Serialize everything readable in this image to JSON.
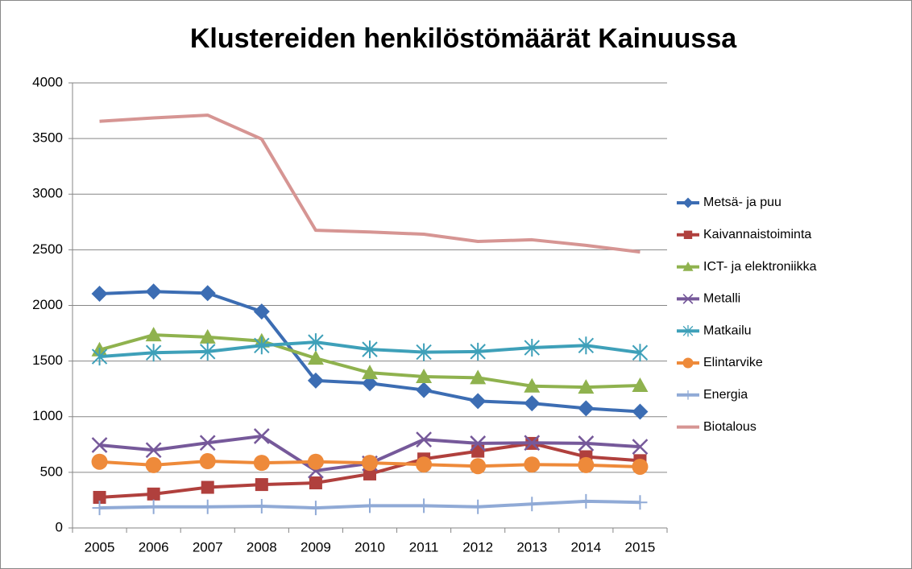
{
  "chart_data": {
    "type": "line",
    "title": "Klustereiden henkilöstömäärät Kainuussa",
    "categories": [
      "2005",
      "2006",
      "2007",
      "2008",
      "2009",
      "2010",
      "2011",
      "2012",
      "2013",
      "2014",
      "2015"
    ],
    "ylim": [
      0,
      4000
    ],
    "yticks": [
      0,
      500,
      1000,
      1500,
      2000,
      2500,
      3000,
      3500,
      4000
    ],
    "grid": true,
    "legend": "right",
    "series": [
      {
        "name": "Metsä- ja puu",
        "color": "#3c6db3",
        "marker": "diamond",
        "values": [
          2105,
          2125,
          2110,
          1945,
          1325,
          1300,
          1240,
          1140,
          1120,
          1075,
          1045
        ]
      },
      {
        "name": "Kaivannaistoiminta",
        "color": "#b0403d",
        "marker": "square",
        "values": [
          275,
          305,
          365,
          390,
          405,
          485,
          620,
          690,
          760,
          640,
          605
        ]
      },
      {
        "name": "ICT- ja elektroniikka",
        "color": "#8fb24e",
        "marker": "triangle",
        "values": [
          1600,
          1735,
          1715,
          1680,
          1525,
          1395,
          1360,
          1350,
          1275,
          1265,
          1280
        ]
      },
      {
        "name": "Metalli",
        "color": "#76599a",
        "marker": "x",
        "values": [
          745,
          700,
          765,
          825,
          515,
          580,
          795,
          760,
          765,
          760,
          730
        ]
      },
      {
        "name": "Matkailu",
        "color": "#3ea0b9",
        "marker": "asterisk",
        "values": [
          1540,
          1575,
          1585,
          1640,
          1670,
          1605,
          1580,
          1585,
          1620,
          1640,
          1575
        ]
      },
      {
        "name": "Elintarvike",
        "color": "#ee8a3a",
        "marker": "circle",
        "values": [
          595,
          565,
          600,
          585,
          595,
          585,
          570,
          555,
          570,
          565,
          550
        ]
      },
      {
        "name": "Energia",
        "color": "#90aad6",
        "marker": "plus",
        "values": [
          180,
          190,
          190,
          195,
          180,
          200,
          200,
          190,
          215,
          240,
          230
        ]
      },
      {
        "name": "Biotalous",
        "color": "#d69593",
        "marker": "none",
        "values": [
          3655,
          3685,
          3710,
          3495,
          2675,
          2660,
          2640,
          2575,
          2590,
          2540,
          2480
        ]
      }
    ]
  }
}
